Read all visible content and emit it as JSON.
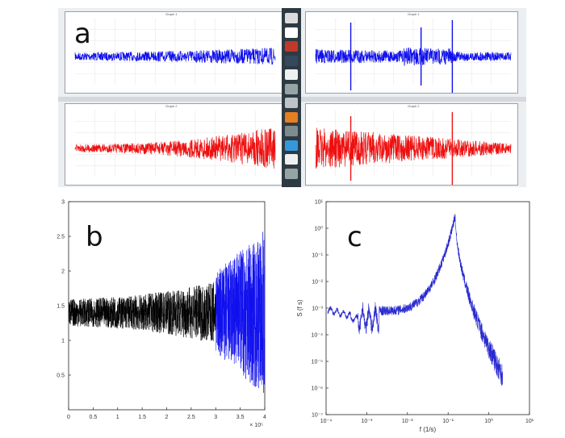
{
  "panels": {
    "a": {
      "letter": "a"
    },
    "b": {
      "letter": "b"
    },
    "c": {
      "letter": "c"
    }
  },
  "colors": {
    "blue_signal": "#1010ee",
    "red_signal": "#ee1010",
    "black_signal": "#000000",
    "spectrum": "#2a2ad0"
  },
  "screenshot_a": {
    "subtitles": {
      "top_left": "Graph 1",
      "top_right": "Graph 1",
      "bottom_left": "Graph 2",
      "bottom_right": "Graph 2"
    },
    "dock_icons": [
      "app-icon-1",
      "app-icon-2",
      "app-icon-3",
      "app-icon-4",
      "app-icon-5",
      "app-icon-6",
      "app-icon-7",
      "app-icon-8",
      "app-icon-9",
      "app-icon-10",
      "app-icon-11",
      "app-icon-12"
    ]
  },
  "chart_data": [
    {
      "type": "line",
      "panel": "b",
      "title": "",
      "xlabel": "",
      "ylabel": "",
      "x_multiplier_label": "× 10⁵",
      "xlim": [
        0,
        4
      ],
      "ylim": [
        0,
        3
      ],
      "xticks": [
        0,
        0.5,
        1,
        1.5,
        2,
        2.5,
        3,
        3.5,
        4
      ],
      "yticks": [
        0.5,
        1,
        1.5,
        2,
        2.5,
        3
      ],
      "series": [
        {
          "color": "#000000",
          "x_range": [
            0,
            3
          ],
          "center": 1.4,
          "amplitude_start": 0.2,
          "amplitude_end": 0.45
        },
        {
          "color": "#1010ee",
          "x_range": [
            3,
            4
          ],
          "center": 1.4,
          "amplitude_start": 0.6,
          "amplitude_end": 1.2
        }
      ]
    },
    {
      "type": "line",
      "panel": "c",
      "title": "",
      "xlabel": "f (1/s)",
      "ylabel": "S (f s)",
      "xscale": "log",
      "yscale": "log",
      "xlim": [
        0.0001,
        10
      ],
      "ylim": [
        1e-07,
        10
      ],
      "x_tick_labels": [
        "10⁻⁴",
        "10⁻³",
        "10⁻²",
        "10⁻¹",
        "10⁰",
        "10¹"
      ],
      "y_tick_labels": [
        "10⁻⁷",
        "10⁻⁶",
        "10⁻⁵",
        "10⁻⁴",
        "10⁻³",
        "10⁻²",
        "10⁻¹",
        "10⁰",
        "10¹"
      ],
      "peak": {
        "f": 0.15,
        "S": 3
      },
      "baseline": 0.0008,
      "tail_end": {
        "f": 2.2,
        "S": 3e-06
      }
    }
  ]
}
